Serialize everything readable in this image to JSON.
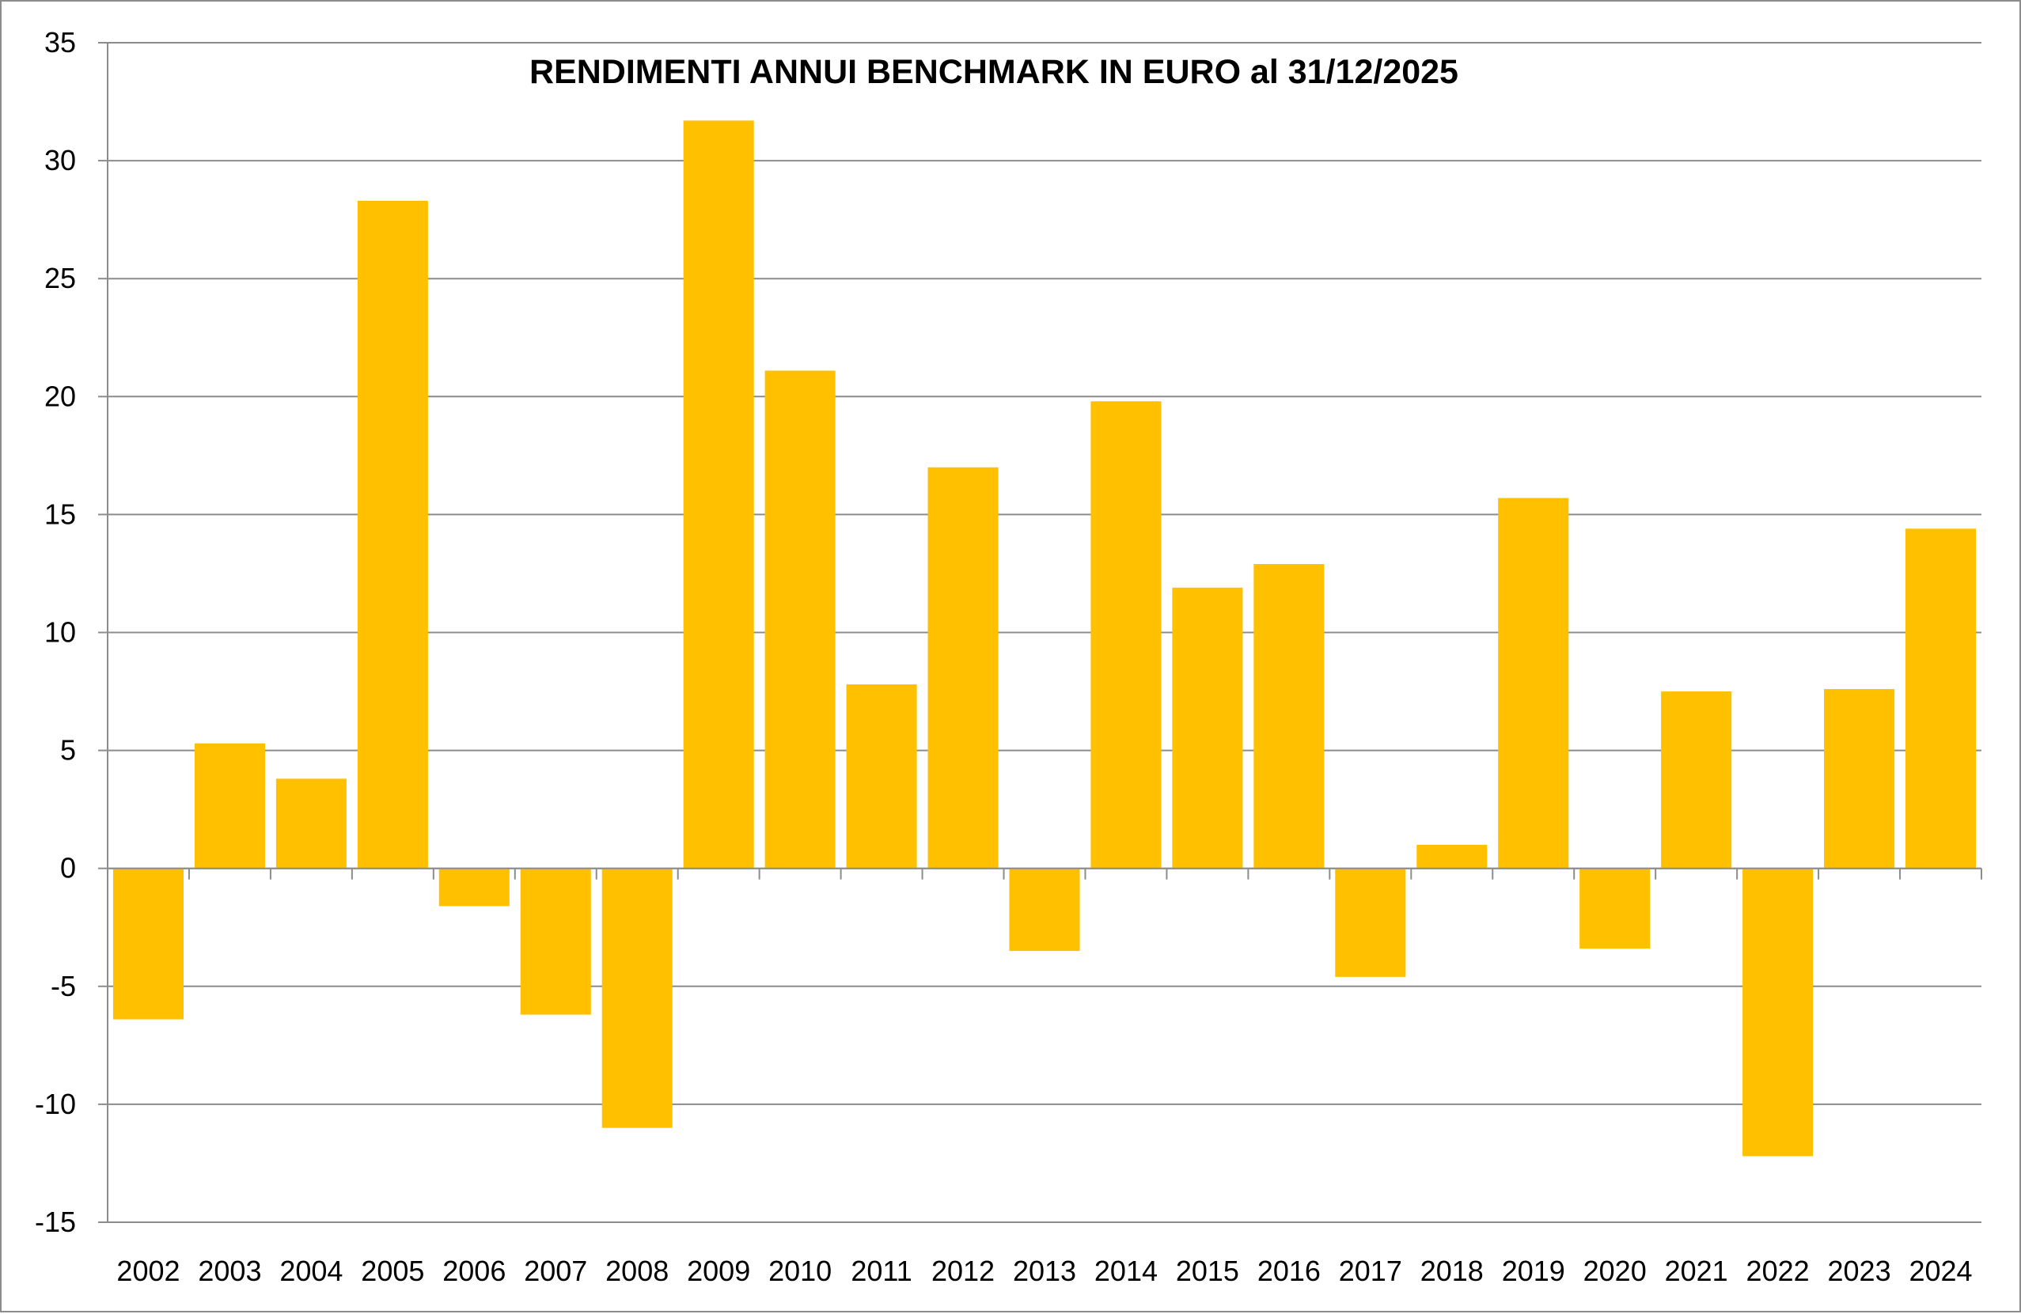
{
  "chart_data": {
    "type": "bar",
    "title": "RENDIMENTI ANNUI BENCHMARK IN EURO al 31/12/2025",
    "xlabel": "",
    "ylabel": "",
    "categories": [
      "2002",
      "2003",
      "2004",
      "2005",
      "2006",
      "2007",
      "2008",
      "2009",
      "2010",
      "2011",
      "2012",
      "2013",
      "2014",
      "2015",
      "2016",
      "2017",
      "2018",
      "2019",
      "2020",
      "2021",
      "2022",
      "2023",
      "2024"
    ],
    "values": [
      -6.4,
      5.3,
      3.8,
      28.3,
      -1.6,
      -6.2,
      -11.0,
      31.7,
      21.1,
      7.8,
      17.0,
      -3.5,
      19.8,
      11.9,
      12.9,
      -4.6,
      1.0,
      15.7,
      -3.4,
      7.5,
      -12.2,
      7.6,
      14.4
    ],
    "ylim": [
      -15,
      35
    ],
    "yticks": [
      "35",
      "30",
      "25",
      "20",
      "15",
      "10",
      "5",
      "0",
      "-5",
      "-10",
      "-15"
    ],
    "grid": true,
    "legend": "none",
    "colors": {
      "bar": "#FFC000",
      "grid": "#8c8c8c",
      "axis": "#8c8c8c",
      "text": "#000000"
    }
  }
}
